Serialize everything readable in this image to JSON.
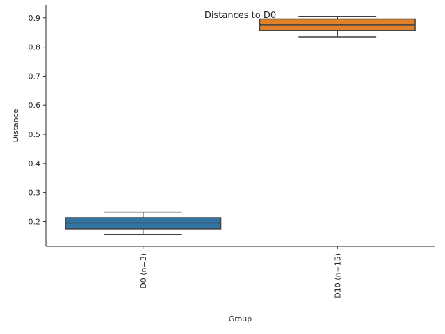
{
  "chart_data": {
    "type": "box",
    "title": "Distances to D0",
    "xlabel": "Group",
    "ylabel": "Distance",
    "ylim": [
      0.115,
      0.945
    ],
    "yticks": [
      0.2,
      0.3,
      0.4,
      0.5,
      0.6,
      0.7,
      0.8,
      0.9
    ],
    "ytick_labels": [
      "0.2",
      "0.3",
      "0.4",
      "0.5",
      "0.6",
      "0.7",
      "0.8",
      "0.9"
    ],
    "grid": false,
    "legend": "none",
    "boxes": [
      {
        "category": "D0 (n=3)",
        "whisker_low": 0.155,
        "q1": 0.175,
        "median": 0.195,
        "q3": 0.213,
        "whisker_high": 0.233,
        "color": "#3274a1"
      },
      {
        "category": "D10 (n=15)",
        "whisker_low": 0.835,
        "q1": 0.857,
        "median": 0.876,
        "q3": 0.896,
        "whisker_high": 0.905,
        "color": "#e1812c"
      }
    ]
  }
}
